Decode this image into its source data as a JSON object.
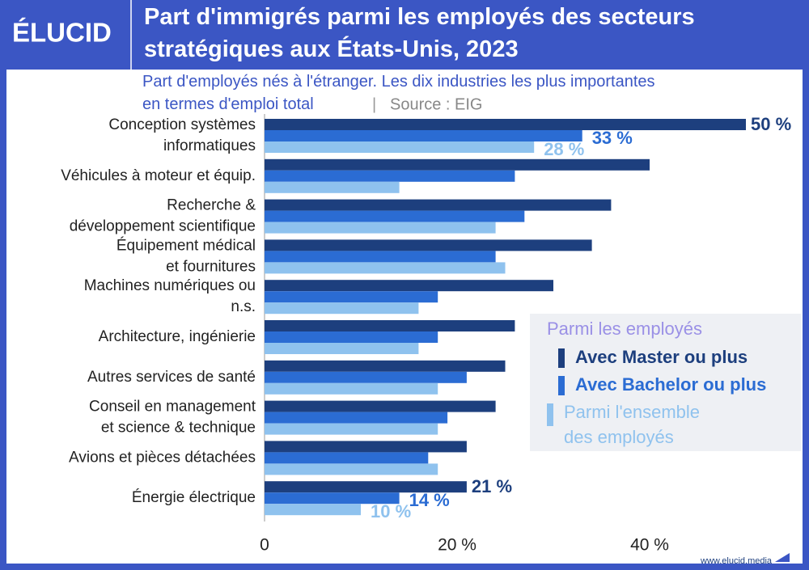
{
  "logo": "ÉLUCID",
  "footer": "www.elucid.media",
  "chart_data": {
    "type": "hbar",
    "title": "Part d'immigrés parmi les employés des secteurs\nstratégiques aux États-Unis, 2023",
    "subtitle": "Part d'employés nés à l'étranger. Les dix industries les plus importantes\nen termes d'emploi total",
    "source": "Source : EIG",
    "categories": [
      "Conception systèmes\ninformatiques",
      "Véhicules à moteur et équip.",
      "Recherche &\ndéveloppement scientifique",
      "Équipement médical\net fournitures",
      "Machines numériques ou\nn.s.",
      "Architecture, ingénierie",
      "Autres services de santé",
      "Conseil en management\net science & technique",
      "Avions et pièces détachées",
      "Énergie électrique"
    ],
    "legend_title": "Parmi les employés",
    "series": [
      {
        "name": "Avec Master ou plus",
        "color": "#1d3f7e",
        "values": [
          50,
          40,
          36,
          34,
          30,
          26,
          25,
          24,
          21,
          21
        ],
        "value_labels": [
          "50 %",
          null,
          null,
          null,
          null,
          null,
          null,
          null,
          null,
          "21 %"
        ]
      },
      {
        "name": "Avec Bachelor ou plus",
        "color": "#2b6cd3",
        "values": [
          33,
          26,
          27,
          24,
          18,
          18,
          21,
          19,
          17,
          14
        ],
        "value_labels": [
          "33 %",
          null,
          null,
          null,
          null,
          null,
          null,
          null,
          null,
          "14 %"
        ]
      },
      {
        "name": "Parmi l'ensemble\ndes employés",
        "color": "#8fc2ee",
        "values": [
          28,
          14,
          24,
          25,
          16,
          16,
          18,
          18,
          18,
          10
        ],
        "value_labels": [
          "28 %",
          null,
          null,
          null,
          null,
          null,
          null,
          null,
          null,
          "10 %"
        ]
      }
    ],
    "xlim": [
      0,
      50
    ],
    "xticks": [
      0,
      {
        "value": 20,
        "label": "20 %"
      },
      {
        "value": 40,
        "label": "40 %"
      }
    ]
  }
}
